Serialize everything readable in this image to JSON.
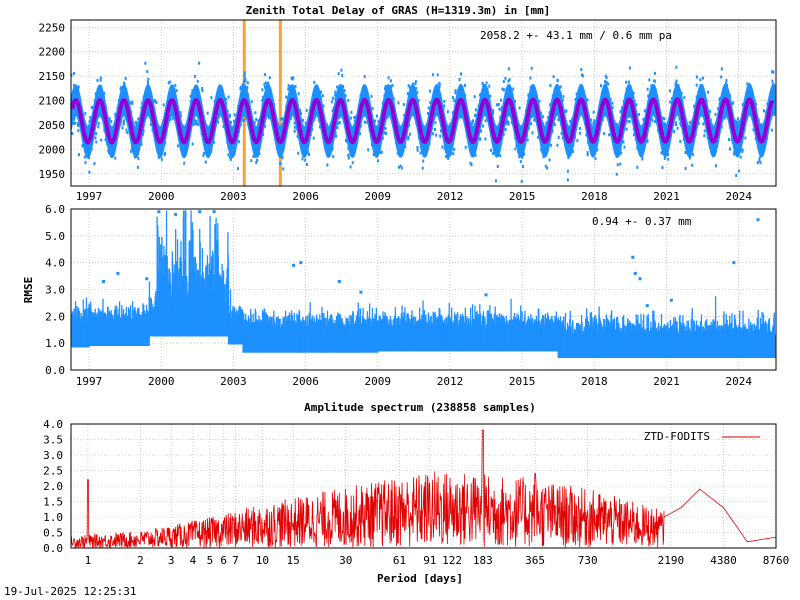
{
  "footer": {
    "timestamp": "19-Jul-2025 12:25:31"
  },
  "colors": {
    "obs": "#1e90ff",
    "model": "#9400d3",
    "event": "#f4a23c",
    "spectrum": "#e00000"
  },
  "chart_data": [
    {
      "type": "scatter",
      "title": "Zenith Total Delay of GRAS (H=1319.3m) in [mm]",
      "annotation": "2058.2 +-  43.1 mm /  0.6 mm pa",
      "ylabel": "",
      "xlim": [
        1996.25,
        2025.55
      ],
      "ylim": [
        1925,
        2265
      ],
      "yticks": [
        1950,
        2000,
        2050,
        2100,
        2150,
        2200,
        2250
      ],
      "xticks": [
        1997,
        2000,
        2003,
        2006,
        2009,
        2012,
        2015,
        2018,
        2021,
        2024
      ],
      "series": [
        {
          "kind": "observed",
          "trend": {
            "mean": 2058.2,
            "amplitude": 43.1,
            "rate_mm_per_year": 0.6
          },
          "range": [
            1996.25,
            2025.5
          ],
          "color": "#1e90ff"
        },
        {
          "kind": "model",
          "trend": {
            "mean": 2058.2,
            "amplitude": 43.1,
            "rate_mm_per_year": 0.6
          },
          "range": [
            1996.3,
            2025.4
          ],
          "color": "#9400d3"
        }
      ],
      "vertical_lines": [
        2003.45,
        2004.95
      ]
    },
    {
      "type": "scatter",
      "title": "",
      "annotation": "0.94 +-  0.37 mm",
      "ylabel": "RMSE",
      "xlim": [
        1996.25,
        2025.55
      ],
      "ylim": [
        0.0,
        6.0
      ],
      "yticks": [
        0.0,
        1.0,
        2.0,
        3.0,
        4.0,
        5.0,
        6.0
      ],
      "xticks": [
        1997,
        2000,
        2003,
        2006,
        2009,
        2012,
        2015,
        2018,
        2021,
        2024
      ],
      "series": [
        {
          "kind": "rmse",
          "mean": 0.94,
          "std": 0.37,
          "color": "#1e90ff",
          "segments": [
            {
              "from": 1996.3,
              "to": 1997.0,
              "baseline": 1.2
            },
            {
              "from": 1997.0,
              "to": 1999.5,
              "baseline": 1.25
            },
            {
              "from": 1999.5,
              "to": 2002.8,
              "baseline": 1.6
            },
            {
              "from": 2002.8,
              "to": 2003.4,
              "baseline": 1.3
            },
            {
              "from": 2003.4,
              "to": 2009.0,
              "baseline": 1.0
            },
            {
              "from": 2009.0,
              "to": 2016.5,
              "baseline": 1.05
            },
            {
              "from": 2016.5,
              "to": 2025.5,
              "baseline": 0.8
            }
          ]
        }
      ],
      "outliers": [
        {
          "x": 1997.6,
          "y": 3.3
        },
        {
          "x": 1998.2,
          "y": 3.6
        },
        {
          "x": 1999.4,
          "y": 3.4
        },
        {
          "x": 1999.9,
          "y": 5.9
        },
        {
          "x": 2000.6,
          "y": 5.8
        },
        {
          "x": 2001.6,
          "y": 5.9
        },
        {
          "x": 2002.2,
          "y": 5.9
        },
        {
          "x": 2005.5,
          "y": 3.9
        },
        {
          "x": 2005.8,
          "y": 4.0
        },
        {
          "x": 2007.4,
          "y": 3.3
        },
        {
          "x": 2008.3,
          "y": 2.9
        },
        {
          "x": 2013.5,
          "y": 2.8
        },
        {
          "x": 2019.6,
          "y": 4.2
        },
        {
          "x": 2019.7,
          "y": 3.6
        },
        {
          "x": 2019.9,
          "y": 3.4
        },
        {
          "x": 2020.2,
          "y": 2.4
        },
        {
          "x": 2023.8,
          "y": 4.0
        },
        {
          "x": 2024.8,
          "y": 5.6
        },
        {
          "x": 2021.2,
          "y": 2.6
        },
        {
          "x": 2017.3,
          "y": 1.7
        }
      ]
    },
    {
      "type": "line",
      "title": "Amplitude spectrum (238858 samples)",
      "xlabel": "Period [days]",
      "ylabel": "",
      "xscale": "log",
      "xlim": [
        0.8,
        8760
      ],
      "ylim": [
        0.0,
        4.0
      ],
      "yticks": [
        0.0,
        0.5,
        1.0,
        1.5,
        2.0,
        2.5,
        3.0,
        3.5,
        4.0
      ],
      "xticks": [
        1,
        2,
        3,
        4,
        5,
        6,
        7,
        10,
        15,
        30,
        61,
        91,
        122,
        183,
        365,
        730,
        2190,
        4380,
        8760
      ],
      "legend": {
        "position": "top-right",
        "entries": [
          "ZTD-FODITS"
        ]
      },
      "series": [
        {
          "name": "ZTD-FODITS",
          "color": "#e00000",
          "peaks": [
            {
              "period": 1.0,
              "amplitude": 2.2
            },
            {
              "period": 183,
              "amplitude": 3.8
            },
            {
              "period": 365,
              "amplitude": 2.4
            },
            {
              "period": 3200,
              "amplitude": 1.9
            },
            {
              "period": 6000,
              "amplitude": 0.2
            },
            {
              "period": 8760,
              "amplitude": 0.35
            }
          ],
          "envelope": [
            {
              "period": 0.8,
              "amplitude": 0.35
            },
            {
              "period": 2,
              "amplitude": 0.5
            },
            {
              "period": 5,
              "amplitude": 0.9
            },
            {
              "period": 10,
              "amplitude": 1.3
            },
            {
              "period": 30,
              "amplitude": 1.8
            },
            {
              "period": 100,
              "amplitude": 2.3
            },
            {
              "period": 300,
              "amplitude": 2.1
            },
            {
              "period": 800,
              "amplitude": 1.7
            },
            {
              "period": 2000,
              "amplitude": 1.1
            }
          ]
        }
      ]
    }
  ]
}
